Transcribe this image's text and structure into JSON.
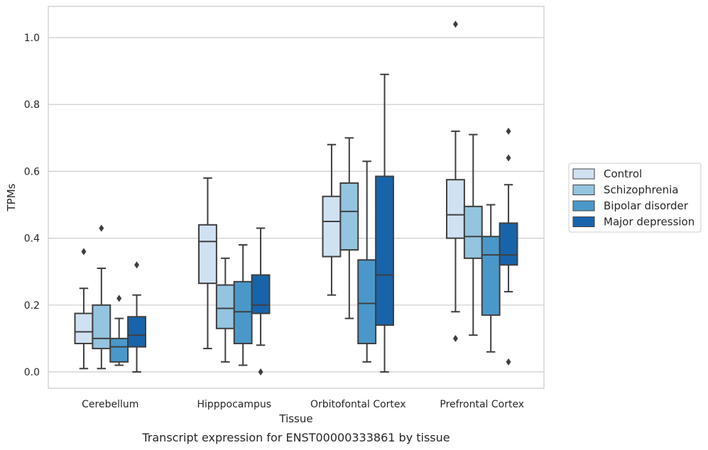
{
  "caption": "Transcript expression for ENST00000333861 by tissue",
  "legend": {
    "items": [
      {
        "label": "Control",
        "color": "#d0e1f2"
      },
      {
        "label": "Schizophrenia",
        "color": "#94c4df"
      },
      {
        "label": "Bipolar disorder",
        "color": "#4a98c9"
      },
      {
        "label": "Major depression",
        "color": "#1764ab"
      }
    ]
  },
  "chart_data": {
    "type": "boxplot",
    "xlabel": "Tissue",
    "ylabel": "TPMs",
    "ylim": [
      -0.05,
      1.09
    ],
    "yticks": [
      0.0,
      0.2,
      0.4,
      0.6,
      0.8,
      1.0
    ],
    "ytick_labels": [
      "0.0",
      "0.2",
      "0.4",
      "0.6",
      "0.8",
      "1.0"
    ],
    "grid": "horizontal",
    "legend_position": "right",
    "categories": [
      "Cerebellum",
      "Hipppocampus",
      "Orbitofontal Cortex",
      "Prefrontal Cortex"
    ],
    "series": [
      {
        "name": "Control",
        "color": "#d0e1f2",
        "boxes": [
          {
            "whislo": 0.01,
            "q1": 0.085,
            "med": 0.12,
            "q3": 0.175,
            "whishi": 0.25,
            "fliers": [
              0.36
            ]
          },
          {
            "whislo": 0.07,
            "q1": 0.265,
            "med": 0.39,
            "q3": 0.44,
            "whishi": 0.58,
            "fliers": []
          },
          {
            "whislo": 0.23,
            "q1": 0.345,
            "med": 0.45,
            "q3": 0.525,
            "whishi": 0.68,
            "fliers": []
          },
          {
            "whislo": 0.18,
            "q1": 0.4,
            "med": 0.47,
            "q3": 0.575,
            "whishi": 0.72,
            "fliers": [
              1.04,
              0.1
            ]
          }
        ]
      },
      {
        "name": "Schizophrenia",
        "color": "#94c4df",
        "boxes": [
          {
            "whislo": 0.01,
            "q1": 0.07,
            "med": 0.1,
            "q3": 0.2,
            "whishi": 0.31,
            "fliers": [
              0.43
            ]
          },
          {
            "whislo": 0.03,
            "q1": 0.13,
            "med": 0.19,
            "q3": 0.26,
            "whishi": 0.34,
            "fliers": []
          },
          {
            "whislo": 0.16,
            "q1": 0.365,
            "med": 0.48,
            "q3": 0.565,
            "whishi": 0.7,
            "fliers": []
          },
          {
            "whislo": 0.11,
            "q1": 0.34,
            "med": 0.405,
            "q3": 0.495,
            "whishi": 0.71,
            "fliers": []
          }
        ]
      },
      {
        "name": "Bipolar disorder",
        "color": "#4a98c9",
        "boxes": [
          {
            "whislo": 0.02,
            "q1": 0.03,
            "med": 0.075,
            "q3": 0.1,
            "whishi": 0.16,
            "fliers": [
              0.22
            ]
          },
          {
            "whislo": 0.02,
            "q1": 0.085,
            "med": 0.18,
            "q3": 0.27,
            "whishi": 0.38,
            "fliers": []
          },
          {
            "whislo": 0.03,
            "q1": 0.085,
            "med": 0.205,
            "q3": 0.335,
            "whishi": 0.63,
            "fliers": []
          },
          {
            "whislo": 0.06,
            "q1": 0.17,
            "med": 0.35,
            "q3": 0.405,
            "whishi": 0.5,
            "fliers": []
          }
        ]
      },
      {
        "name": "Major depression",
        "color": "#1764ab",
        "boxes": [
          {
            "whislo": 0.0,
            "q1": 0.075,
            "med": 0.11,
            "q3": 0.165,
            "whishi": 0.23,
            "fliers": [
              0.32
            ]
          },
          {
            "whislo": 0.08,
            "q1": 0.175,
            "med": 0.2,
            "q3": 0.29,
            "whishi": 0.43,
            "fliers": [
              0.0
            ]
          },
          {
            "whislo": 0.0,
            "q1": 0.14,
            "med": 0.29,
            "q3": 0.585,
            "whishi": 0.89,
            "fliers": []
          },
          {
            "whislo": 0.24,
            "q1": 0.32,
            "med": 0.35,
            "q3": 0.445,
            "whishi": 0.56,
            "fliers": [
              0.72,
              0.64,
              0.03
            ]
          }
        ]
      }
    ]
  }
}
